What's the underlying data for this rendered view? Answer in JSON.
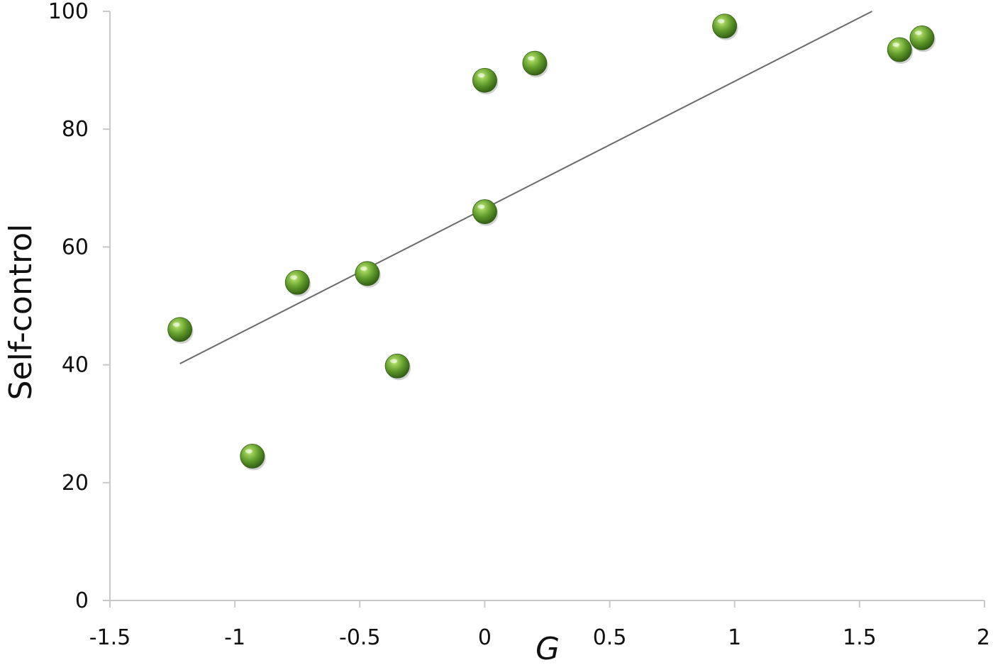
{
  "chart_data": {
    "type": "scatter",
    "title": "",
    "xlabel": "G",
    "ylabel": "Self-control",
    "xlim": [
      -1.5,
      2
    ],
    "ylim": [
      0,
      100
    ],
    "x_ticks": [
      "-1.5",
      "-1",
      "-0.5",
      "0",
      "0.5",
      "1",
      "1.5",
      "2"
    ],
    "y_ticks": [
      "0",
      "20",
      "40",
      "60",
      "80",
      "100"
    ],
    "grid": false,
    "legend": "none",
    "marker_color": "#6aa132",
    "trendline": {
      "x": [
        -1.22,
        1.55
      ],
      "y": [
        40.2,
        100
      ]
    },
    "series": [
      {
        "x": [
          -1.22,
          -0.93,
          -0.75,
          -0.47,
          -0.35,
          0.0,
          0.0,
          0.2,
          0.96,
          1.66,
          1.75
        ],
        "y": [
          46,
          24.5,
          54,
          55.5,
          39.8,
          66,
          88.3,
          91.2,
          97.5,
          93.5,
          95.5
        ]
      }
    ]
  }
}
